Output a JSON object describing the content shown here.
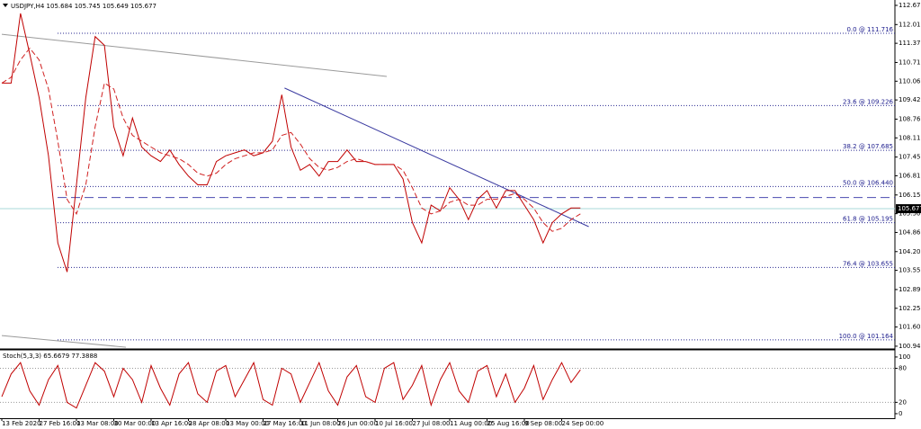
{
  "chart_data": [
    {
      "type": "line",
      "title": "USDJPY,H4 105.684 105.745 105.649 105.677",
      "categories": [
        "13 Feb 2020",
        null,
        null,
        null,
        "27 Feb 16:00",
        null,
        null,
        null,
        "13 Mar 08:00",
        null,
        null,
        null,
        "30 Mar 00:00",
        null,
        null,
        null,
        "13 Apr 16:00",
        null,
        null,
        null,
        "28 Apr 08:00",
        null,
        null,
        null,
        "13 May 00:00",
        null,
        null,
        null,
        "27 May 16:00",
        null,
        null,
        null,
        "11 Jun 08:00",
        null,
        null,
        null,
        "26 Jun 00:00",
        null,
        null,
        null,
        "10 Jul 16:00",
        null,
        null,
        null,
        "27 Jul 08:00",
        null,
        null,
        null,
        "11 Aug 00:00",
        null,
        null,
        null,
        "25 Aug 16:00",
        null,
        null,
        null,
        "9 Sep 08:00",
        null,
        null,
        null,
        "24 Sep 00:00",
        null,
        null
      ],
      "series": [
        {
          "color": "#c00000",
          "values": [
            110.0,
            110.0,
            112.4,
            111.0,
            109.5,
            107.5,
            104.5,
            103.5,
            106.5,
            109.5,
            111.6,
            111.3,
            108.5,
            107.5,
            108.8,
            107.8,
            107.5,
            107.3,
            107.7,
            107.2,
            106.8,
            106.5,
            106.5,
            107.3,
            107.5,
            107.6,
            107.7,
            107.5,
            107.6,
            108.0,
            109.6,
            107.8,
            107.0,
            107.2,
            106.8,
            107.3,
            107.3,
            107.7,
            107.3,
            107.3,
            107.2,
            107.2,
            107.2,
            106.7,
            105.2,
            104.5,
            105.8,
            105.6,
            106.4,
            106.0,
            105.3,
            106.0,
            106.3,
            105.7,
            106.3,
            106.3,
            105.8,
            105.3,
            104.5,
            105.2,
            105.5,
            105.7,
            105.7
          ]
        },
        {
          "color": "#d02020",
          "dash": true,
          "values": [
            110.0,
            110.2,
            110.8,
            111.2,
            110.8,
            109.8,
            108.0,
            106.0,
            105.5,
            106.5,
            108.5,
            110.0,
            109.8,
            108.8,
            108.2,
            108.0,
            107.8,
            107.6,
            107.5,
            107.4,
            107.2,
            106.9,
            106.8,
            106.9,
            107.2,
            107.4,
            107.5,
            107.6,
            107.6,
            107.7,
            108.2,
            108.3,
            107.9,
            107.4,
            107.1,
            107.0,
            107.1,
            107.3,
            107.4,
            107.3,
            107.2,
            107.2,
            107.2,
            107.0,
            106.4,
            105.7,
            105.5,
            105.6,
            105.9,
            106.0,
            105.8,
            105.8,
            106.0,
            106.0,
            106.1,
            106.2,
            106.0,
            105.7,
            105.2,
            104.9,
            105.0,
            105.3,
            105.5
          ]
        }
      ],
      "ylim": [
        100.85,
        112.86
      ],
      "yticks": [
        112.675,
        112.015,
        {
          "value": 111.37,
          "label": "111.370"
        },
        {
          "value": 110.71,
          "label": "110.710"
        },
        110.065,
        {
          "value": 109.42,
          "label": "109.420"
        },
        {
          "value": 108.76,
          "label": "108.760"
        },
        108.115,
        107.455,
        {
          "value": 106.81,
          "label": "106.810"
        },
        {
          "value": 106.15,
          "label": "106.150"
        },
        105.505,
        {
          "value": 104.86,
          "label": "104.860"
        },
        {
          "value": 104.2,
          "label": "104.200"
        },
        103.555,
        102.895,
        {
          "value": 102.25,
          "label": "102.250"
        },
        101.605,
        100.945
      ],
      "levels": [
        {
          "label": "0.0 @ 111.716",
          "value": 111.716
        },
        {
          "label": "23.6 @ 109.226",
          "value": 109.226
        },
        {
          "label": "38.2 @ 107.685",
          "value": 107.685
        },
        {
          "label": "50.0 @ 106.440",
          "value": 106.44
        },
        {
          "label": "61.8 @ 105.195",
          "value": 105.195
        },
        {
          "label": "76.4 @ 103.655",
          "value": 103.655
        },
        {
          "label": "100.0 @ 101.164",
          "value": 101.164
        }
      ],
      "dashed_level": 106.06,
      "last_price": 105.677,
      "lines": [
        {
          "color": "#3a3aa0",
          "x": [
            30.3,
            62.9
          ],
          "y": [
            109.83,
            105.06
          ]
        },
        {
          "color": "#9a9a9a",
          "x": [
            0,
            41.25
          ],
          "y": [
            111.68,
            110.23
          ]
        },
        {
          "color": "#9a9a9a",
          "x": [
            0,
            13.3
          ],
          "y": [
            101.31,
            100.91
          ]
        }
      ]
    },
    {
      "type": "line",
      "title": "Stoch(5,3,3) 65.6679 77.3888",
      "series": [
        {
          "color": "#c00000",
          "values": [
            30,
            70,
            90,
            40,
            15,
            60,
            85,
            20,
            10,
            50,
            90,
            75,
            30,
            80,
            60,
            20,
            85,
            45,
            15,
            70,
            90,
            35,
            20,
            75,
            85,
            30,
            60,
            90,
            25,
            15,
            80,
            70,
            20,
            55,
            90,
            40,
            15,
            65,
            85,
            30,
            20,
            80,
            90,
            25,
            50,
            85,
            15,
            60,
            90,
            40,
            20,
            75,
            85,
            30,
            70,
            20,
            45,
            85,
            25,
            60,
            90,
            55,
            77.39
          ]
        }
      ],
      "ylim": [
        -8,
        111
      ],
      "yticks": [
        100,
        80,
        20,
        0
      ],
      "levels": [
        80,
        20
      ]
    }
  ]
}
